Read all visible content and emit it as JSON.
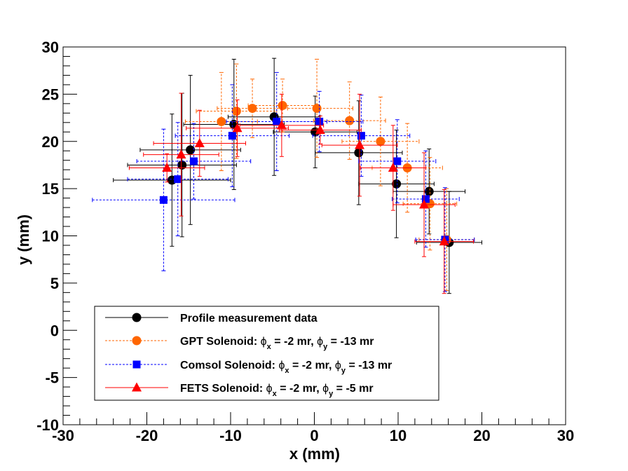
{
  "chart_data": {
    "type": "scatter",
    "title": "",
    "xlabel": "x (mm)",
    "ylabel": "y (mm)",
    "xlim": [
      -30,
      30
    ],
    "ylim": [
      -10,
      30
    ],
    "x_ticks": [
      "-30",
      "-20",
      "-10",
      "0",
      "10",
      "20",
      "30"
    ],
    "y_ticks": [
      "-10",
      "-5",
      "0",
      "5",
      "10",
      "15",
      "20",
      "25",
      "30"
    ],
    "grid": false,
    "legend_position": "bottom-left",
    "series": [
      {
        "name": "Profile measurement data",
        "color": "#000000",
        "marker": "circle",
        "line_style": "solid",
        "points": [
          {
            "x": -17.0,
            "y": 15.9,
            "xerr": 7.0,
            "yerr": 7.0
          },
          {
            "x": -15.8,
            "y": 17.5,
            "xerr": 6.5,
            "yerr": 7.6
          },
          {
            "x": -14.8,
            "y": 19.1,
            "xerr": 6.0,
            "yerr": 7.9
          },
          {
            "x": -9.6,
            "y": 21.8,
            "xerr": 6.0,
            "yerr": 6.9
          },
          {
            "x": -4.8,
            "y": 22.6,
            "xerr": 5.5,
            "yerr": 6.2
          },
          {
            "x": 0.1,
            "y": 21.0,
            "xerr": 5.0,
            "yerr": 3.8
          },
          {
            "x": 5.3,
            "y": 18.8,
            "xerr": 5.2,
            "yerr": 5.5
          },
          {
            "x": 9.8,
            "y": 15.5,
            "xerr": 4.5,
            "yerr": 5.7
          },
          {
            "x": 13.7,
            "y": 14.7,
            "xerr": 4.3,
            "yerr": 4.5
          },
          {
            "x": 16.1,
            "y": 9.3,
            "xerr": 3.9,
            "yerr": 5.4
          }
        ]
      },
      {
        "name": "GPT Solenoid: ϕx = -2 mr, ϕy = -13 mr",
        "color": "#ff6600",
        "marker": "circle",
        "line_style": "dashed",
        "points": [
          {
            "x": -11.1,
            "y": 22.1,
            "xerr": 4.3,
            "yerr": 5.2
          },
          {
            "x": -9.3,
            "y": 23.2,
            "xerr": 4.8,
            "yerr": 5.0
          },
          {
            "x": -7.4,
            "y": 23.5,
            "xerr": 4.2,
            "yerr": 3.1
          },
          {
            "x": -3.8,
            "y": 23.8,
            "xerr": 4.1,
            "yerr": 2.8
          },
          {
            "x": 0.3,
            "y": 23.5,
            "xerr": 4.3,
            "yerr": 5.2
          },
          {
            "x": 4.2,
            "y": 22.2,
            "xerr": 4.3,
            "yerr": 4.1
          },
          {
            "x": 7.9,
            "y": 20.0,
            "xerr": 4.6,
            "yerr": 4.7
          },
          {
            "x": 11.1,
            "y": 17.2,
            "xerr": 4.2,
            "yerr": 4.7
          },
          {
            "x": 13.8,
            "y": 13.4,
            "xerr": 3.2,
            "yerr": 4.9
          },
          {
            "x": 15.8,
            "y": 9.6,
            "xerr": 3.3,
            "yerr": 5.4
          }
        ]
      },
      {
        "name": "Comsol Solenoid: ϕx = -2 mr, ϕy = -13 mr",
        "color": "#0000ff",
        "marker": "square",
        "line_style": "dashed",
        "points": [
          {
            "x": -18.0,
            "y": 13.8,
            "xerr": 8.5,
            "yerr": 7.5
          },
          {
            "x": -16.3,
            "y": 16.0,
            "xerr": 6.0,
            "yerr": 6.0
          },
          {
            "x": -14.4,
            "y": 17.9,
            "xerr": 6.8,
            "yerr": 4.0
          },
          {
            "x": -9.8,
            "y": 20.6,
            "xerr": 6.8,
            "yerr": 5.4
          },
          {
            "x": -4.5,
            "y": 22.1,
            "xerr": 6.0,
            "yerr": 5.2
          },
          {
            "x": 0.6,
            "y": 22.1,
            "xerr": 5.2,
            "yerr": 3.2
          },
          {
            "x": 5.6,
            "y": 20.6,
            "xerr": 5.8,
            "yerr": 4.3
          },
          {
            "x": 9.9,
            "y": 17.9,
            "xerr": 4.6,
            "yerr": 4.4
          },
          {
            "x": 13.3,
            "y": 13.9,
            "xerr": 4.0,
            "yerr": 5.1
          },
          {
            "x": 15.6,
            "y": 9.6,
            "xerr": 3.5,
            "yerr": 5.5
          }
        ]
      },
      {
        "name": "FETS Solenoid: ϕx = -2 mr, ϕy = -5 mr",
        "color": "#ff0000",
        "marker": "triangle",
        "line_style": "solid",
        "points": [
          {
            "x": -17.6,
            "y": 17.2,
            "xerr": 4.5,
            "yerr": 1.5
          },
          {
            "x": -15.9,
            "y": 18.6,
            "xerr": 4.5,
            "yerr": 6.5
          },
          {
            "x": -13.7,
            "y": 19.8,
            "xerr": 5.5,
            "yerr": 3.5
          },
          {
            "x": -9.2,
            "y": 21.4,
            "xerr": 6.1,
            "yerr": 3.0
          },
          {
            "x": -3.9,
            "y": 21.7,
            "xerr": 5.0,
            "yerr": 3.3
          },
          {
            "x": 0.7,
            "y": 21.2,
            "xerr": 4.9,
            "yerr": 1.5
          },
          {
            "x": 5.4,
            "y": 19.6,
            "xerr": 4.5,
            "yerr": 5.4
          },
          {
            "x": 9.4,
            "y": 17.2,
            "xerr": 3.9,
            "yerr": 4.5
          },
          {
            "x": 13.1,
            "y": 13.3,
            "xerr": 3.7,
            "yerr": 5.5
          },
          {
            "x": 15.5,
            "y": 9.4,
            "xerr": 3.5,
            "yerr": 5.5
          }
        ]
      }
    ]
  },
  "legend": {
    "entries": [
      {
        "prefix": "Profile measurement data",
        "mid": "",
        "suffix": "",
        "sub1": "",
        "sub2": ""
      },
      {
        "prefix": "GPT Solenoid: ",
        "mid": " = -2 mr, ",
        "suffix": " = -13 mr",
        "sub1": "x",
        "sub2": "y",
        "phi": "ϕ"
      },
      {
        "prefix": "Comsol Solenoid: ",
        "mid": " = -2 mr, ",
        "suffix": " = -13 mr",
        "sub1": "x",
        "sub2": "y",
        "phi": "ϕ"
      },
      {
        "prefix": "FETS Solenoid: ",
        "mid": " = -2 mr, ",
        "suffix": " = -5 mr",
        "sub1": "x",
        "sub2": "y",
        "phi": "ϕ"
      }
    ]
  }
}
